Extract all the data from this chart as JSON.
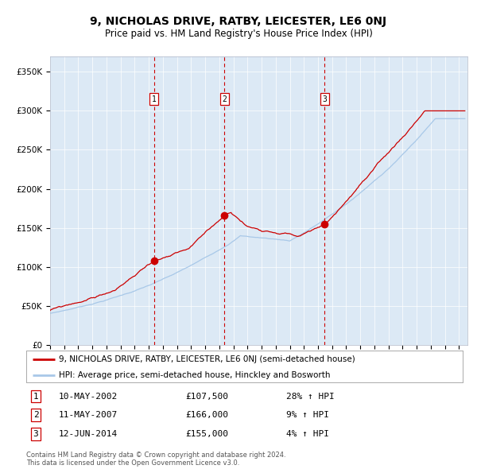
{
  "title": "9, NICHOLAS DRIVE, RATBY, LEICESTER, LE6 0NJ",
  "subtitle": "Price paid vs. HM Land Registry's House Price Index (HPI)",
  "plot_bg_color": "#dce9f5",
  "hpi_line_color": "#a8c8e8",
  "price_line_color": "#cc0000",
  "marker_color": "#cc0000",
  "vline_color": "#cc0000",
  "ylim": [
    0,
    370000
  ],
  "yticks": [
    0,
    50000,
    100000,
    150000,
    200000,
    250000,
    300000,
    350000
  ],
  "ytick_labels": [
    "£0",
    "£50K",
    "£100K",
    "£150K",
    "£200K",
    "£250K",
    "£300K",
    "£350K"
  ],
  "sale_years_float": [
    2002.37,
    2007.37,
    2014.46
  ],
  "sale_prices": [
    107500,
    166000,
    155000
  ],
  "sale_labels": [
    "1",
    "2",
    "3"
  ],
  "legend_price_label": "9, NICHOLAS DRIVE, RATBY, LEICESTER, LE6 0NJ (semi-detached house)",
  "legend_hpi_label": "HPI: Average price, semi-detached house, Hinckley and Bosworth",
  "table_rows": [
    [
      "1",
      "10-MAY-2002",
      "£107,500",
      "28% ↑ HPI"
    ],
    [
      "2",
      "11-MAY-2007",
      "£166,000",
      "9% ↑ HPI"
    ],
    [
      "3",
      "12-JUN-2014",
      "£155,000",
      "4% ↑ HPI"
    ]
  ],
  "footer": "Contains HM Land Registry data © Crown copyright and database right 2024.\nThis data is licensed under the Open Government Licence v3.0."
}
